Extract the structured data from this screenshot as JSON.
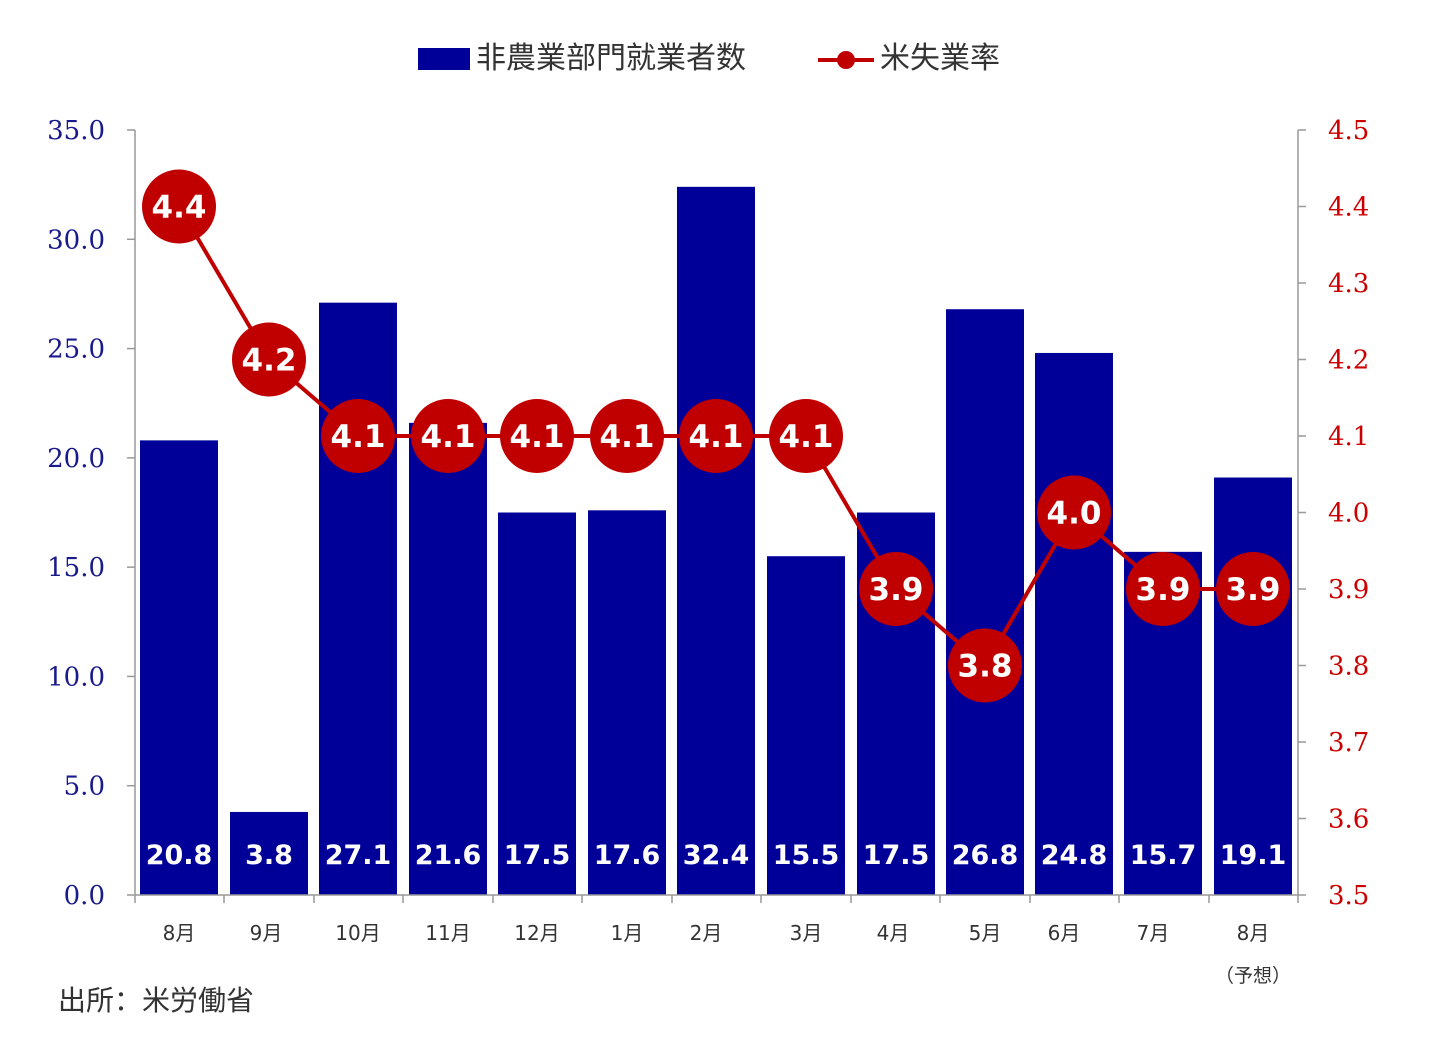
{
  "chart_data": {
    "type": "bar",
    "categories": [
      "8月",
      "9月",
      "10月",
      "11月",
      "12月",
      "1月",
      "2月",
      "3月",
      "4月",
      "5月",
      "6月",
      "7月",
      "8月"
    ],
    "category_note": "（予想）",
    "series": [
      {
        "name": "非農業部門就業者数",
        "type": "bar",
        "axis": "left",
        "color": "#000099",
        "values": [
          20.8,
          3.8,
          27.1,
          21.6,
          17.5,
          17.6,
          32.4,
          15.5,
          17.5,
          26.8,
          24.8,
          15.7,
          19.1
        ],
        "value_labels": [
          "20.8",
          "3.8",
          "27.1",
          "21.6",
          "17.5",
          "17.6",
          "32.4",
          "15.5",
          "17.5",
          "26.8",
          "24.8",
          "15.7",
          "19.1"
        ]
      },
      {
        "name": "米失業率",
        "type": "line",
        "axis": "right",
        "color": "#c00000",
        "values": [
          4.4,
          4.2,
          4.1,
          4.1,
          4.1,
          4.1,
          4.1,
          4.1,
          3.9,
          3.8,
          4.0,
          3.9,
          3.9
        ],
        "value_labels": [
          "4.4",
          "4.2",
          "4.1",
          "4.1",
          "4.1",
          "4.1",
          "4.1",
          "4.1",
          "3.9",
          "3.8",
          "4.0",
          "3.9",
          "3.9"
        ]
      }
    ],
    "left_axis": {
      "ylim": [
        0,
        35
      ],
      "ticks": [
        "0.0",
        "5.0",
        "10.0",
        "15.0",
        "20.0",
        "25.0",
        "30.0",
        "35.0"
      ],
      "color": "#1a1a8c"
    },
    "right_axis": {
      "ylim": [
        3.5,
        4.5
      ],
      "ticks": [
        "3.5",
        "3.6",
        "3.7",
        "3.8",
        "3.9",
        "4.0",
        "4.1",
        "4.2",
        "4.3",
        "4.4",
        "4.5"
      ],
      "color": "#cc0000"
    },
    "legend_position": "top-center",
    "grid": false
  },
  "source": "出所：米労働省"
}
